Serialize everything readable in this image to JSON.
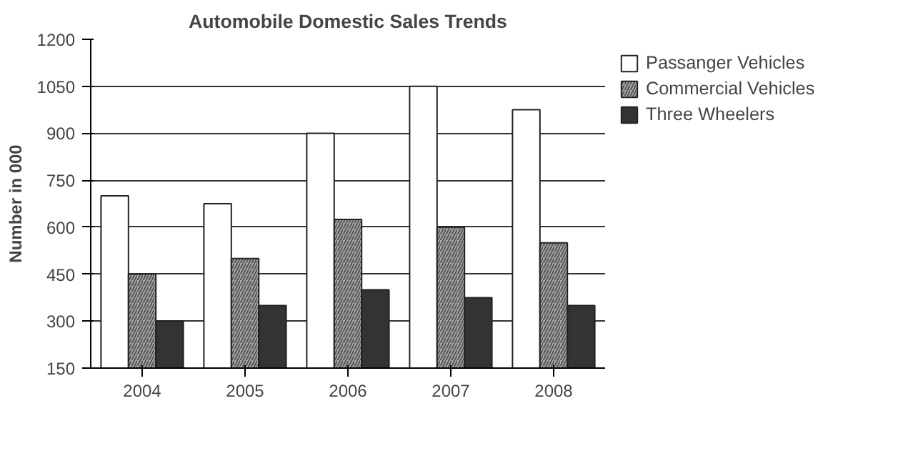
{
  "chart_data": {
    "type": "bar",
    "title": "Automobile Domestic Sales Trends",
    "ylabel": "Number in 000",
    "categories": [
      "2004",
      "2005",
      "2006",
      "2007",
      "2008"
    ],
    "series": [
      {
        "name": "Passanger Vehicles",
        "color": "#ffffff",
        "values": [
          700,
          675,
          900,
          1050,
          975
        ]
      },
      {
        "name": "Commercial Vehicles",
        "color": "#a9a9a9",
        "values": [
          450,
          500,
          625,
          600,
          550
        ]
      },
      {
        "name": "Three Wheelers",
        "color": "#333333",
        "values": [
          300,
          350,
          400,
          375,
          350
        ]
      }
    ],
    "ylim": [
      150,
      1200
    ],
    "yticks": [
      150,
      300,
      450,
      600,
      750,
      900,
      1050,
      1200
    ],
    "grid": "y",
    "legend": "right"
  }
}
